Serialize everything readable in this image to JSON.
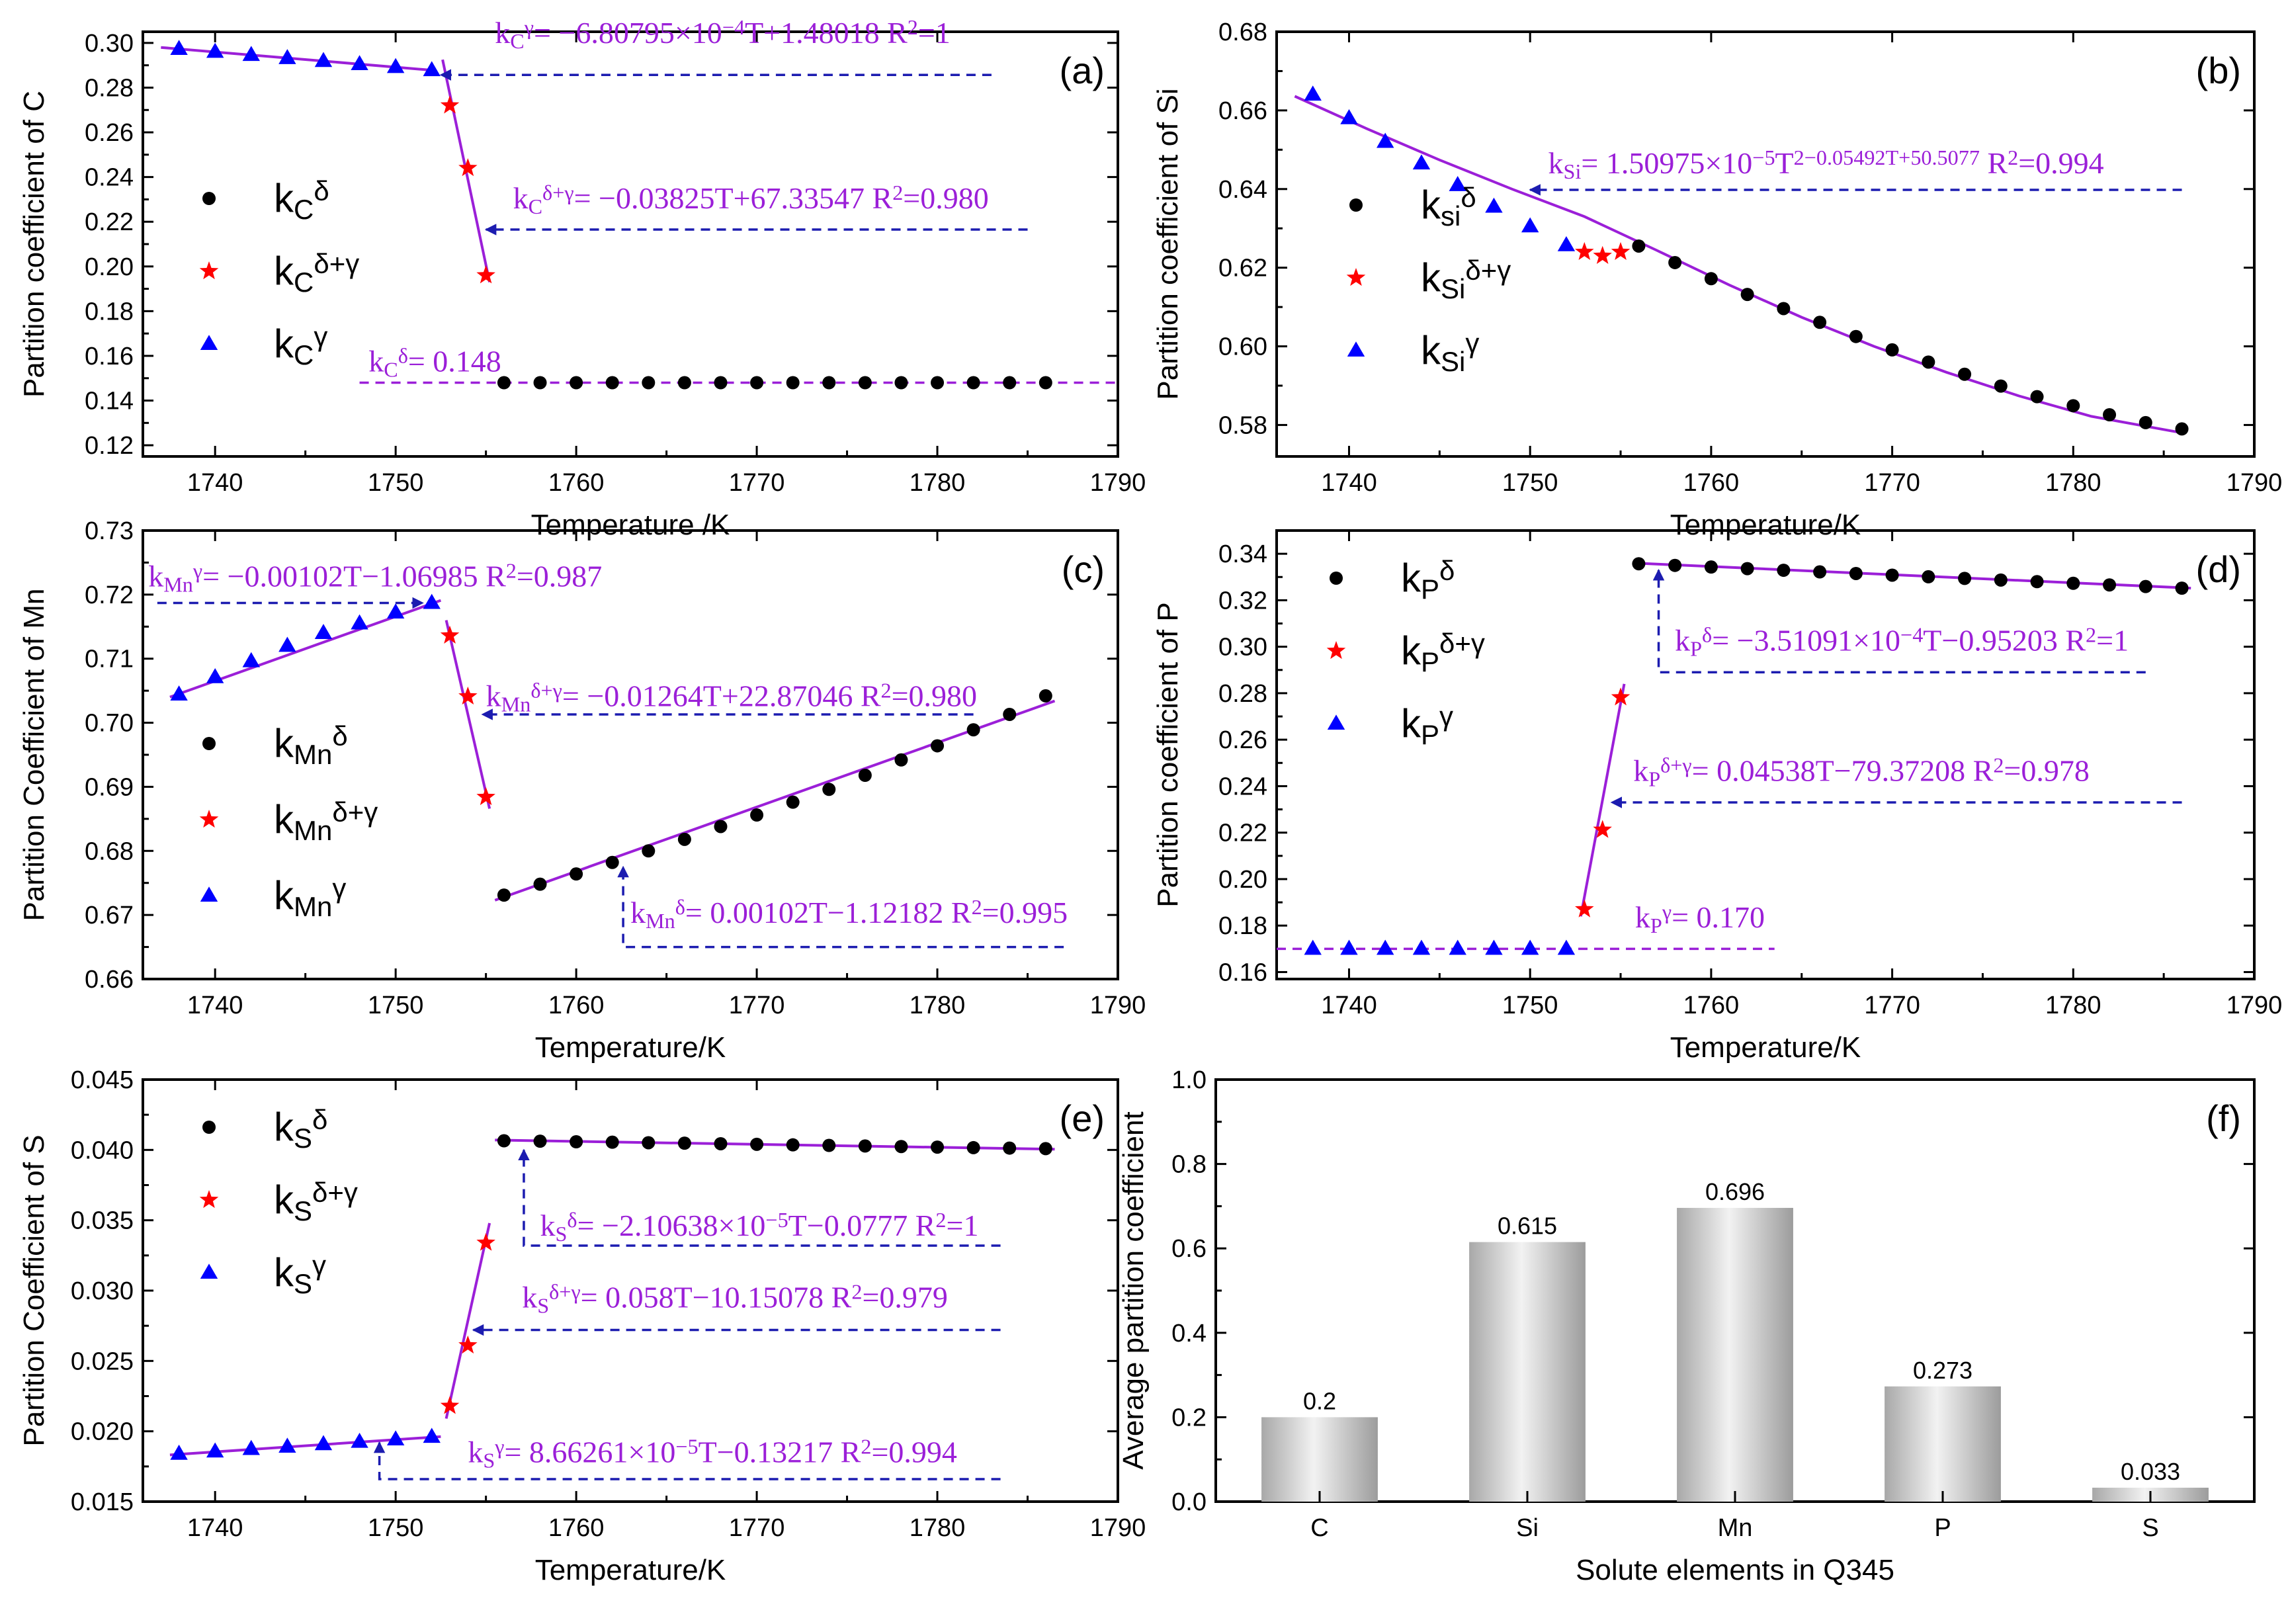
{
  "colors": {
    "fit": "#9b1fd8",
    "delta": "#000000",
    "dg": "#ff0000",
    "gamma": "#0000ff",
    "arrow": "#1c1cb0"
  },
  "chart_data": [
    {
      "id": "a",
      "type": "scatter",
      "label": "(a)",
      "xlabel": "Temperature /K",
      "ylabel": "Partition coefficient of C",
      "xlim": [
        1736,
        1790
      ],
      "ylim": [
        0.115,
        0.305
      ],
      "xticks": [
        1740,
        1750,
        1760,
        1770,
        1780,
        1790
      ],
      "yticks": [
        0.12,
        0.14,
        0.16,
        0.18,
        0.2,
        0.22,
        0.24,
        0.26,
        0.28,
        0.3
      ],
      "ytick_labels": [
        "0.12",
        "0.14",
        "0.16",
        "0.18",
        "0.20",
        "0.22",
        "0.24",
        "0.26",
        "0.28",
        "0.30"
      ],
      "series": [
        {
          "name": "delta",
          "marker": "circle",
          "x": [
            1756,
            1758,
            1760,
            1762,
            1764,
            1766,
            1768,
            1770,
            1772,
            1774,
            1776,
            1778,
            1780,
            1782,
            1784,
            1786
          ],
          "y": [
            0.148,
            0.148,
            0.148,
            0.148,
            0.148,
            0.148,
            0.148,
            0.148,
            0.148,
            0.148,
            0.148,
            0.148,
            0.148,
            0.148,
            0.148,
            0.148
          ]
        },
        {
          "name": "delta+gamma",
          "marker": "star",
          "x": [
            1753,
            1754,
            1755
          ],
          "y": [
            0.272,
            0.244,
            0.196
          ]
        },
        {
          "name": "gamma",
          "marker": "triangle",
          "x": [
            1738,
            1740,
            1742,
            1744,
            1746,
            1748,
            1750,
            1752
          ],
          "y": [
            0.2973,
            0.296,
            0.2946,
            0.2932,
            0.2919,
            0.2905,
            0.2892,
            0.2878
          ]
        }
      ],
      "fits": [
        {
          "x": [
            1737,
            1752
          ],
          "y": [
            0.298,
            0.2878
          ]
        },
        {
          "x": [
            1752.6,
            1755.2
          ],
          "y": [
            0.2925,
            0.193
          ]
        }
      ],
      "dashed_lines": [
        {
          "x": [
            1748,
            1790
          ],
          "y": [
            0.148,
            0.148
          ],
          "color": "purple"
        }
      ],
      "legend": [
        "C"
      ],
      "equations": [
        {
          "text": "k_C^γ= −6.80795×10^{−4}T+1.48018  R^2=1",
          "text_x": 1755.5,
          "text_y": 0.3,
          "arrow_from": [
            1783,
            0.2857
          ],
          "arrow_to": [
            1752.5,
            0.2857
          ]
        },
        {
          "text": "k_C^{δ+γ}= −0.03825T+67.33547  R^2=0.980",
          "text_x": 1756.5,
          "text_y": 0.226,
          "arrow_from": [
            1785,
            0.2165
          ],
          "arrow_to": [
            1755,
            0.2165
          ]
        },
        {
          "text": "k_C^δ= 0.148",
          "text_x": 1748.5,
          "text_y": 0.153
        }
      ]
    },
    {
      "id": "b",
      "type": "scatter",
      "label": "(b)",
      "xlabel": "Temperature/K",
      "ylabel": "Partition coefficient of Si",
      "xlim": [
        1736,
        1790
      ],
      "ylim": [
        0.572,
        0.68
      ],
      "xticks": [
        1740,
        1750,
        1760,
        1770,
        1780,
        1790
      ],
      "yticks": [
        0.58,
        0.6,
        0.62,
        0.64,
        0.66,
        0.68
      ],
      "ytick_labels": [
        "0.58",
        "0.60",
        "0.62",
        "0.64",
        "0.66",
        "0.68"
      ],
      "series": [
        {
          "name": "delta",
          "marker": "circle",
          "x": [
            1756,
            1758,
            1760,
            1762,
            1764,
            1766,
            1768,
            1770,
            1772,
            1774,
            1776,
            1778,
            1780,
            1782,
            1784,
            1786
          ],
          "y": [
            0.6255,
            0.6213,
            0.6172,
            0.6132,
            0.6096,
            0.6061,
            0.6025,
            0.5991,
            0.596,
            0.5929,
            0.5899,
            0.5872,
            0.5849,
            0.5826,
            0.5806,
            0.579
          ]
        },
        {
          "name": "delta+gamma",
          "marker": "star",
          "x": [
            1753,
            1754,
            1755
          ],
          "y": [
            0.624,
            0.623,
            0.624
          ]
        },
        {
          "name": "gamma",
          "marker": "triangle",
          "x": [
            1738,
            1740,
            1742,
            1744,
            1746,
            1748,
            1750,
            1752
          ],
          "y": [
            0.664,
            0.658,
            0.652,
            0.6465,
            0.641,
            0.6355,
            0.6305,
            0.6257
          ]
        }
      ],
      "fits": [
        {
          "x": [
            1737,
            1741,
            1745,
            1749,
            1753,
            1757,
            1761,
            1765,
            1769,
            1773,
            1777,
            1781,
            1786
          ],
          "y": [
            0.6636,
            0.6553,
            0.6474,
            0.64,
            0.633,
            0.6244,
            0.6156,
            0.6074,
            0.6,
            0.5934,
            0.5874,
            0.5822,
            0.578
          ]
        }
      ],
      "dashed_lines": [],
      "legend": [
        "si",
        "Si",
        "Si"
      ],
      "equations": [
        {
          "text": "k_Si= 1.50975×10^{−5}T^2−0.05492T+50.5077  R^2=0.994",
          "text_x": 1751.0,
          "text_y": 0.644,
          "arrow_from": [
            1786,
            0.6398
          ],
          "arrow_to": [
            1750,
            0.6398
          ]
        }
      ]
    },
    {
      "id": "c",
      "type": "scatter",
      "label": "(c)",
      "xlabel": "Temperature/K",
      "ylabel": "Partition Coefficient of Mn",
      "xlim": [
        1736,
        1790
      ],
      "ylim": [
        0.66,
        0.73
      ],
      "xticks": [
        1740,
        1750,
        1760,
        1770,
        1780,
        1790
      ],
      "yticks": [
        0.66,
        0.67,
        0.68,
        0.69,
        0.7,
        0.71,
        0.72,
        0.73
      ],
      "ytick_labels": [
        "0.66",
        "0.67",
        "0.68",
        "0.69",
        "0.70",
        "0.71",
        "0.72",
        "0.73"
      ],
      "series": [
        {
          "name": "delta",
          "marker": "circle",
          "x": [
            1756,
            1758,
            1760,
            1762,
            1764,
            1766,
            1768,
            1770,
            1772,
            1774,
            1776,
            1778,
            1780,
            1782,
            1784,
            1786
          ],
          "y": [
            0.6731,
            0.6748,
            0.6764,
            0.6782,
            0.68,
            0.6818,
            0.6838,
            0.6856,
            0.6876,
            0.6896,
            0.6918,
            0.6942,
            0.6964,
            0.6989,
            0.7013,
            0.7042
          ]
        },
        {
          "name": "delta+gamma",
          "marker": "star",
          "x": [
            1753,
            1754,
            1755
          ],
          "y": [
            0.7136,
            0.7041,
            0.6884
          ]
        },
        {
          "name": "gamma",
          "marker": "triangle",
          "x": [
            1738,
            1740,
            1742,
            1744,
            1746,
            1748,
            1750,
            1752
          ],
          "y": [
            0.7044,
            0.7071,
            0.7096,
            0.712,
            0.714,
            0.7155,
            0.7172,
            0.7187
          ]
        }
      ],
      "fits": [
        {
          "x": [
            1737.5,
            1752.5
          ],
          "y": [
            0.704,
            0.7191
          ]
        },
        {
          "x": [
            1752.8,
            1755.2
          ],
          "y": [
            0.716,
            0.6866
          ]
        },
        {
          "x": [
            1755.5,
            1786.5
          ],
          "y": [
            0.6723,
            0.7034
          ]
        }
      ],
      "dashed_lines": [],
      "legend": [
        "Mn"
      ],
      "equations": [
        {
          "text": "k_Mn^γ= −0.00102T−1.06985  R^2=0.987",
          "text_x": 1736.3,
          "text_y": 0.7213,
          "arrow_from": [
            1736.8,
            0.7187
          ],
          "arrow_to": [
            1751.5,
            0.7187
          ]
        },
        {
          "text": "k_Mn^{δ+γ}= −0.01264T+22.87046  R^2=0.980",
          "text_x": 1755.0,
          "text_y": 0.7026,
          "arrow_from": [
            1782,
            0.7013
          ],
          "arrow_to": [
            1754.8,
            0.7013
          ]
        },
        {
          "text": "k_Mn^δ= 0.00102T−1.12182  R^2=0.995",
          "text_x": 1763.0,
          "text_y": 0.6688,
          "arrow_from": [
            1787,
            0.665
          ],
          "arrow_to": [
            1762.6,
            0.665
          ],
          "arrow_end": [
            1762.6,
            0.6775
          ]
        }
      ]
    },
    {
      "id": "d",
      "type": "scatter",
      "label": "(d)",
      "xlabel": "Temperature/K",
      "ylabel": "Partition coefficient of P",
      "xlim": [
        1736,
        1790
      ],
      "ylim": [
        0.157,
        0.35
      ],
      "xticks": [
        1740,
        1750,
        1760,
        1770,
        1780,
        1790
      ],
      "yticks": [
        0.16,
        0.18,
        0.2,
        0.22,
        0.24,
        0.26,
        0.28,
        0.3,
        0.32,
        0.34
      ],
      "ytick_labels": [
        "0.16",
        "0.18",
        "0.20",
        "0.22",
        "0.24",
        "0.26",
        "0.28",
        "0.30",
        "0.32",
        "0.34"
      ],
      "series": [
        {
          "name": "delta",
          "marker": "circle",
          "x": [
            1756,
            1758,
            1760,
            1762,
            1764,
            1766,
            1768,
            1770,
            1772,
            1774,
            1776,
            1778,
            1780,
            1782,
            1784,
            1786
          ],
          "y": [
            0.3357,
            0.335,
            0.3343,
            0.3336,
            0.3329,
            0.3322,
            0.3315,
            0.3308,
            0.3301,
            0.3294,
            0.3287,
            0.328,
            0.3273,
            0.3266,
            0.3259,
            0.3252
          ]
        },
        {
          "name": "delta+gamma",
          "marker": "star",
          "x": [
            1753,
            1754,
            1755
          ],
          "y": [
            0.187,
            0.2212,
            0.2782
          ]
        },
        {
          "name": "gamma",
          "marker": "triangle",
          "x": [
            1738,
            1740,
            1742,
            1744,
            1746,
            1748,
            1750,
            1752
          ],
          "y": [
            0.17,
            0.17,
            0.17,
            0.17,
            0.17,
            0.17,
            0.17,
            0.17
          ]
        }
      ],
      "fits": [
        {
          "x": [
            1755.8,
            1786.5
          ],
          "y": [
            0.336,
            0.3252
          ]
        },
        {
          "x": [
            1752.8,
            1755.2
          ],
          "y": [
            0.184,
            0.284
          ]
        }
      ],
      "dashed_lines": [
        {
          "x": [
            1736,
            1763.5
          ],
          "y": [
            0.17,
            0.17
          ],
          "color": "purple"
        }
      ],
      "legend": [
        "P"
      ],
      "equations": [
        {
          "text": "k_P^δ= −3.51091×10^{−4}T−0.95203  R^2=1",
          "text_x": 1758.0,
          "text_y": 0.2983,
          "arrow_from": [
            1784,
            0.289
          ],
          "arrow_to": [
            1757.1,
            0.289
          ],
          "arrow_end": [
            1757.1,
            0.333
          ]
        },
        {
          "text": "k_P^{δ+γ}= 0.04538T−79.37208  R^2=0.978",
          "text_x": 1755.7,
          "text_y": 0.2422,
          "arrow_from": [
            1786,
            0.233
          ],
          "arrow_to": [
            1754.5,
            0.233
          ]
        },
        {
          "text": "k_P^γ= 0.170",
          "text_x": 1755.8,
          "text_y": 0.1792
        }
      ]
    },
    {
      "id": "e",
      "type": "scatter",
      "label": "(e)",
      "xlabel": "Temperature/K",
      "ylabel": "Partition Coefficient of S",
      "xlim": [
        1736,
        1790
      ],
      "ylim": [
        0.015,
        0.045
      ],
      "xticks": [
        1740,
        1750,
        1760,
        1770,
        1780,
        1790
      ],
      "yticks": [
        0.015,
        0.02,
        0.025,
        0.03,
        0.035,
        0.04,
        0.045
      ],
      "ytick_labels": [
        "0.015",
        "0.020",
        "0.025",
        "0.030",
        "0.035",
        "0.040",
        "0.045"
      ],
      "series": [
        {
          "name": "delta",
          "marker": "circle",
          "x": [
            1756,
            1758,
            1760,
            1762,
            1764,
            1766,
            1768,
            1770,
            1772,
            1774,
            1776,
            1778,
            1780,
            1782,
            1784,
            1786
          ],
          "y": [
            0.04065,
            0.04062,
            0.04058,
            0.04055,
            0.04051,
            0.04048,
            0.04044,
            0.0404,
            0.04036,
            0.04032,
            0.04028,
            0.04024,
            0.0402,
            0.04016,
            0.04013,
            0.04009
          ]
        },
        {
          "name": "delta+gamma",
          "marker": "star",
          "x": [
            1753,
            1754,
            1755
          ],
          "y": [
            0.0218,
            0.0261,
            0.0334
          ]
        },
        {
          "name": "gamma",
          "marker": "triangle",
          "x": [
            1738,
            1740,
            1742,
            1744,
            1746,
            1748,
            1750,
            1752
          ],
          "y": [
            0.0184,
            0.01856,
            0.01874,
            0.0189,
            0.01908,
            0.01925,
            0.01942,
            0.0196
          ]
        }
      ],
      "fits": [
        {
          "x": [
            1755.5,
            1786.5
          ],
          "y": [
            0.0407,
            0.04005
          ]
        },
        {
          "x": [
            1752.8,
            1755.2
          ],
          "y": [
            0.0209,
            0.0348
          ]
        },
        {
          "x": [
            1737.5,
            1752.5
          ],
          "y": [
            0.01832,
            0.01962
          ]
        }
      ],
      "dashed_lines": [],
      "legend": [
        "S"
      ],
      "equations": [
        {
          "text": "k_S^δ= −2.10638×10^{−5}T−0.0777  R^2=1",
          "text_x": 1758.0,
          "text_y": 0.0339,
          "arrow_from": [
            1783.5,
            0.0332
          ],
          "arrow_to": [
            1757.1,
            0.0332
          ],
          "arrow_end": [
            1757.1,
            0.04
          ]
        },
        {
          "text": "k_S^{δ+γ}= 0.058T−10.15078  R^2=0.979",
          "text_x": 1757.0,
          "text_y": 0.0288,
          "arrow_from": [
            1783.5,
            0.0272
          ],
          "arrow_to": [
            1754.3,
            0.0272
          ]
        },
        {
          "text": "k_S^γ= 8.66261×10^{−5}T−0.13217  R^2=0.994",
          "text_x": 1754.0,
          "text_y": 0.0178,
          "arrow_from": [
            1783.5,
            0.0166
          ],
          "arrow_to": [
            1749.1,
            0.0166
          ],
          "arrow_end": [
            1749.1,
            0.0192
          ]
        }
      ]
    },
    {
      "id": "f",
      "type": "bar",
      "label": "(f)",
      "xlabel": "Solute elements in Q345",
      "ylabel": "Average partition coefficient",
      "categories": [
        "C",
        "Si",
        "Mn",
        "P",
        "S"
      ],
      "values": [
        0.2,
        0.615,
        0.696,
        0.273,
        0.033
      ],
      "value_labels": [
        "0.2",
        "0.615",
        "0.696",
        "0.273",
        "0.033"
      ],
      "ylim": [
        0,
        1.0
      ],
      "yticks": [
        0.0,
        0.2,
        0.4,
        0.6,
        0.8,
        1.0
      ],
      "ytick_labels": [
        "0.0",
        "0.2",
        "0.4",
        "0.6",
        "0.8",
        "1.0"
      ]
    }
  ]
}
